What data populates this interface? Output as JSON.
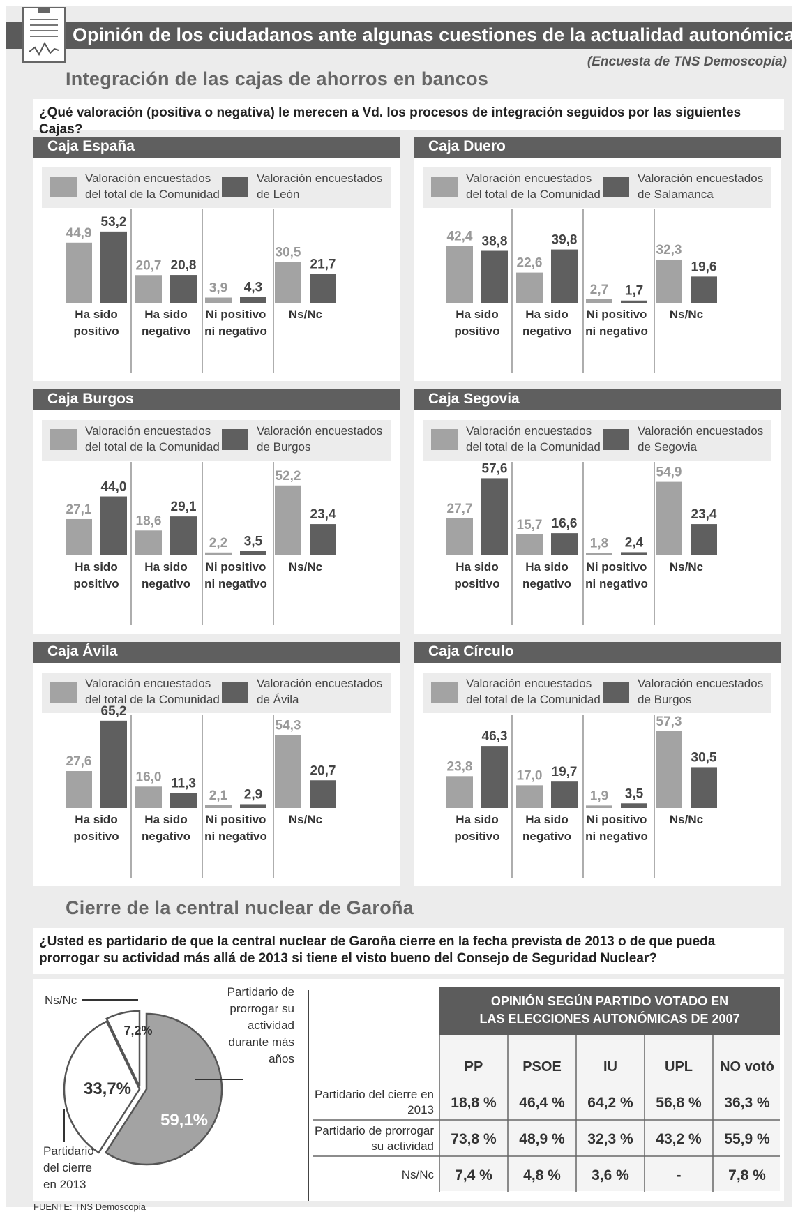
{
  "header": {
    "title": "Opinión de los ciudadanos ante algunas cuestiones de la actualidad autonómica",
    "source_note": "(Encuesta de TNS Demoscopia)"
  },
  "section1": {
    "title": "Integración de las cajas de ahorros en bancos",
    "question": "¿Qué valoración  (positiva o negativa) le merecen a Vd. los procesos de integración seguidos por las siguientes Cajas?"
  },
  "colors": {
    "light": "#a3a3a3",
    "dark": "#5f5f5f",
    "panel_head": "#5f5f5f",
    "background": "#ececec"
  },
  "chart_data": [
    {
      "type": "bar",
      "title": "Caja España",
      "categories": [
        "Ha sido positivo",
        "Ha sido negativo",
        "Ni positivo ni negativo",
        "Ns/Nc"
      ],
      "legend_position": "top",
      "legend_labels": [
        "Valoración encuestados del total de la Comunidad",
        "Valoración encuestados de León"
      ],
      "series": [
        {
          "name": "Valoración encuestados del total de la Comunidad",
          "values": [
            44.9,
            20.7,
            3.9,
            30.5
          ],
          "labels": [
            "44,9",
            "20,7",
            "3,9",
            "30,5"
          ]
        },
        {
          "name": "Valoración encuestados de León",
          "values": [
            53.2,
            20.8,
            4.3,
            21.7
          ],
          "labels": [
            "53,2",
            "20,8",
            "4,3",
            "21,7"
          ]
        }
      ]
    },
    {
      "type": "bar",
      "title": "Caja Duero",
      "categories": [
        "Ha sido positivo",
        "Ha sido negativo",
        "Ni positivo ni negativo",
        "Ns/Nc"
      ],
      "legend_position": "top",
      "legend_labels": [
        "Valoración encuestados del total de la Comunidad",
        "Valoración encuestados de Salamanca"
      ],
      "series": [
        {
          "name": "Valoración encuestados del total de la Comunidad",
          "values": [
            42.4,
            22.6,
            2.7,
            32.3
          ],
          "labels": [
            "42,4",
            "22,6",
            "2,7",
            "32,3"
          ]
        },
        {
          "name": "Valoración encuestados de Salamanca",
          "values": [
            38.8,
            39.8,
            1.7,
            19.6
          ],
          "labels": [
            "38,8",
            "39,8",
            "1,7",
            "19,6"
          ]
        }
      ]
    },
    {
      "type": "bar",
      "title": "Caja Burgos",
      "categories": [
        "Ha sido positivo",
        "Ha sido negativo",
        "Ni positivo ni negativo",
        "Ns/Nc"
      ],
      "legend_position": "top",
      "legend_labels": [
        "Valoración encuestados del total de la Comunidad",
        "Valoración encuestados de Burgos"
      ],
      "series": [
        {
          "name": "Valoración encuestados del total de la Comunidad",
          "values": [
            27.1,
            18.6,
            2.2,
            52.2
          ],
          "labels": [
            "27,1",
            "18,6",
            "2,2",
            "52,2"
          ]
        },
        {
          "name": "Valoración encuestados de Burgos",
          "values": [
            44.0,
            29.1,
            3.5,
            23.4
          ],
          "labels": [
            "44,0",
            "29,1",
            "3,5",
            "23,4"
          ]
        }
      ]
    },
    {
      "type": "bar",
      "title": "Caja Segovia",
      "categories": [
        "Ha sido positivo",
        "Ha sido negativo",
        "Ni positivo ni negativo",
        "Ns/Nc"
      ],
      "legend_position": "top",
      "legend_labels": [
        "Valoración encuestados del total de la Comunidad",
        "Valoración encuestados de Segovia"
      ],
      "series": [
        {
          "name": "Valoración encuestados del total de la Comunidad",
          "values": [
            27.7,
            15.7,
            1.8,
            54.9
          ],
          "labels": [
            "27,7",
            "15,7",
            "1,8",
            "54,9"
          ]
        },
        {
          "name": "Valoración encuestados de Segovia",
          "values": [
            57.6,
            16.6,
            2.4,
            23.4
          ],
          "labels": [
            "57,6",
            "16,6",
            "2,4",
            "23,4"
          ]
        }
      ]
    },
    {
      "type": "bar",
      "title": "Caja Ávila",
      "categories": [
        "Ha sido positivo",
        "Ha sido negativo",
        "Ni positivo ni negativo",
        "Ns/Nc"
      ],
      "legend_position": "top",
      "legend_labels": [
        "Valoración encuestados del total de la Comunidad",
        "Valoración encuestados de Ávila"
      ],
      "series": [
        {
          "name": "Valoración encuestados del total de la Comunidad",
          "values": [
            27.6,
            16.0,
            2.1,
            54.3
          ],
          "labels": [
            "27,6",
            "16,0",
            "2,1",
            "54,3"
          ]
        },
        {
          "name": "Valoración encuestados de Ávila",
          "values": [
            65.2,
            11.3,
            2.9,
            20.7
          ],
          "labels": [
            "65,2",
            "11,3",
            "2,9",
            "20,7"
          ]
        }
      ]
    },
    {
      "type": "bar",
      "title": "Caja Círculo",
      "categories": [
        "Ha sido positivo",
        "Ha sido negativo",
        "Ni positivo ni negativo",
        "Ns/Nc"
      ],
      "legend_position": "top",
      "legend_labels": [
        "Valoración encuestados del total de la Comunidad",
        "Valoración encuestados de Burgos"
      ],
      "series": [
        {
          "name": "Valoración encuestados del total de la Comunidad",
          "values": [
            23.8,
            17.0,
            1.9,
            57.3
          ],
          "labels": [
            "23,8",
            "17,0",
            "1,9",
            "57,3"
          ]
        },
        {
          "name": "Valoración encuestados de Burgos",
          "values": [
            46.3,
            19.7,
            3.5,
            30.5
          ],
          "labels": [
            "46,3",
            "19,7",
            "3,5",
            "30,5"
          ]
        }
      ]
    },
    {
      "type": "pie",
      "title": "",
      "slices": [
        {
          "name": "Partidario de prorrogar su actividad durante más años",
          "value": 59.1,
          "label": "59,1%"
        },
        {
          "name": "Partidario del cierre en 2013",
          "value": 33.7,
          "label": "33,7%"
        },
        {
          "name": "Ns/Nc",
          "value": 7.2,
          "label": "7,2%"
        }
      ]
    },
    {
      "type": "table",
      "title": "OPINIÓN SEGÚN PARTIDO VOTADO EN LAS ELECCIONES AUTONÓMICAS DE 2007",
      "columns": [
        "PP",
        "PSOE",
        "IU",
        "UPL",
        "NO votó"
      ],
      "rows": [
        {
          "label": "Partidario del cierre en 2013",
          "values": [
            "18,8 %",
            "46,4 %",
            "64,2 %",
            "56,8 %",
            "36,3 %"
          ]
        },
        {
          "label": "Partidario de prorrogar su actividad",
          "values": [
            "73,8 %",
            "48,9 %",
            "32,3 %",
            "43,2 %",
            "55,9 %"
          ]
        },
        {
          "label": "Ns/Nc",
          "values": [
            "7,4 %",
            "4,8 %",
            "3,6 %",
            "-",
            "7,8 %"
          ]
        }
      ]
    }
  ],
  "section2": {
    "title": "Cierre de la central nuclear de Garoña",
    "question": "¿Usted es partidario de que la central nuclear de Garoña cierre en la fecha prevista de 2013 o de que pueda prorrogar su actividad más allá de 2013 si tiene el visto bueno del Consejo de Seguridad Nuclear?"
  },
  "pie_labels": {
    "nsnc": "Ns/Nc",
    "prorrogar": [
      "Partidario de",
      "prorrogar su",
      "actividad",
      "durante más",
      "años"
    ],
    "cierre": [
      "Partidario",
      "del cierre",
      "en 2013"
    ]
  },
  "table_head_lines": [
    "OPINIÓN SEGÚN PARTIDO VOTADO EN",
    "LAS ELECCIONES AUTONÓMICAS DE 2007"
  ],
  "table_row_label_lines": [
    [
      "Partidario del cierre en",
      "2013"
    ],
    [
      "Partidario de prorrogar",
      "su actividad"
    ],
    [
      "Ns/Nc"
    ]
  ],
  "footer": {
    "source": "FUENTE: TNS Demoscopia"
  }
}
